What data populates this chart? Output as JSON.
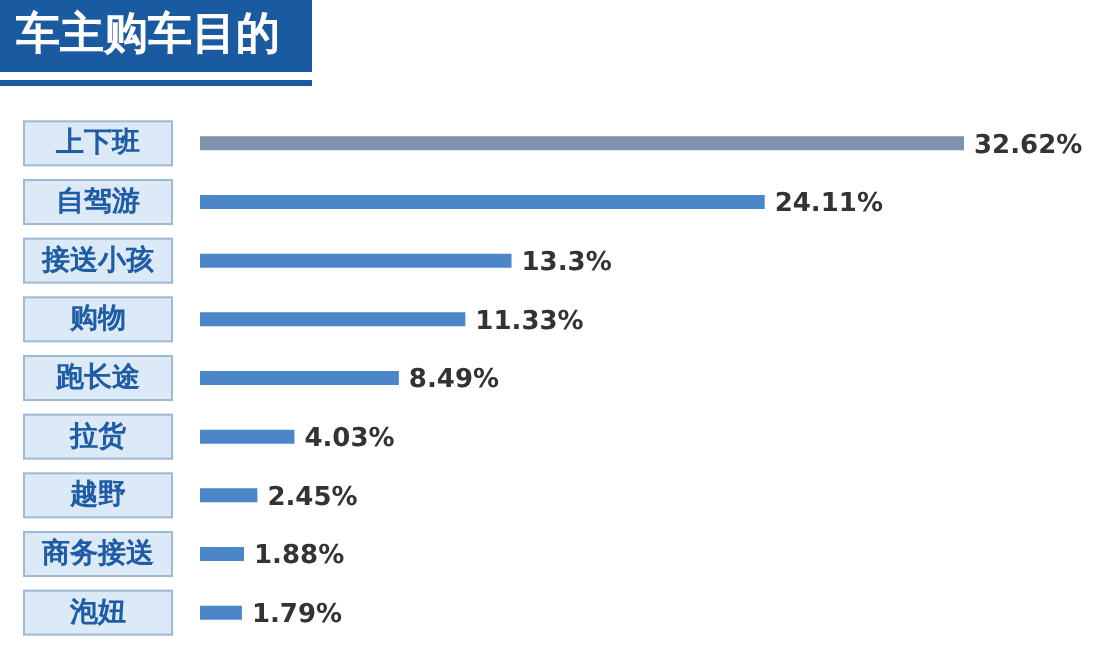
{
  "chart_data": {
    "type": "bar",
    "orientation": "horizontal",
    "title": "车主购车目的",
    "categories": [
      "上下班",
      "自驾游",
      "接送小孩",
      "购物",
      "跑长途",
      "拉货",
      "越野",
      "商务接送",
      "泡妞"
    ],
    "values": [
      32.62,
      24.11,
      13.3,
      11.33,
      8.49,
      4.03,
      2.45,
      1.88,
      1.79
    ],
    "colors": [
      "#7f93ad",
      "#4a86c8",
      "#4a86c8",
      "#4a86c8",
      "#4a86c8",
      "#4a86c8",
      "#4a86c8",
      "#4a86c8",
      "#4a86c8"
    ],
    "value_labels": [
      "32.62%",
      "24.11%",
      "13.3%",
      "11.33%",
      "8.49%",
      "4.03%",
      "2.45%",
      "1.88%",
      "1.79%"
    ]
  }
}
